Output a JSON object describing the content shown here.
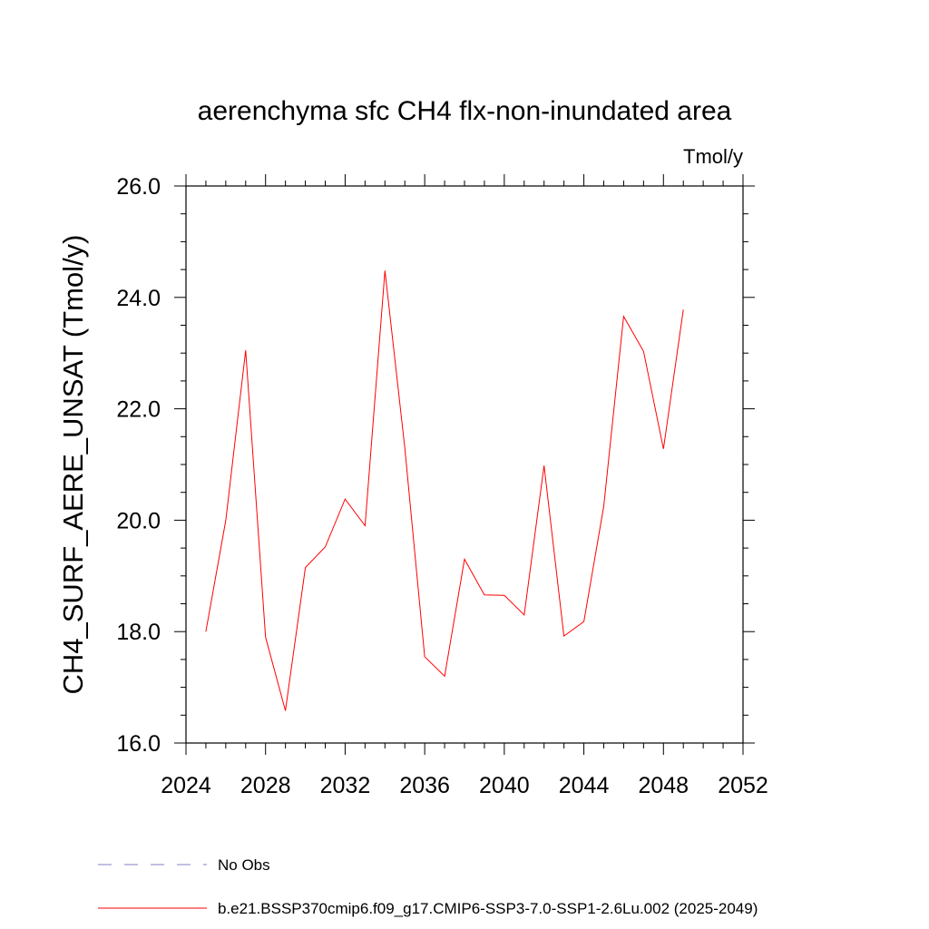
{
  "chart_data": {
    "type": "line",
    "title": "aerenchyma sfc CH4 flx-non-inundated area",
    "units_label": "Tmol/y",
    "ylabel": "CH4_SURF_AERE_UNSAT  (Tmol/y)",
    "xlabel": "",
    "xlim": [
      2024,
      2052
    ],
    "ylim": [
      16.0,
      26.0
    ],
    "x_ticks": [
      "2024",
      "2028",
      "2032",
      "2036",
      "2040",
      "2044",
      "2048",
      "2052"
    ],
    "y_ticks": [
      "16.0",
      "18.0",
      "20.0",
      "22.0",
      "24.0",
      "26.0"
    ],
    "grid": false,
    "x": [
      2025,
      2026,
      2027,
      2028,
      2029,
      2030,
      2031,
      2032,
      2033,
      2034,
      2035,
      2036,
      2037,
      2038,
      2039,
      2040,
      2041,
      2042,
      2043,
      2044,
      2045,
      2046,
      2047,
      2048,
      2049
    ],
    "series": [
      {
        "name": "b.e21.BSSP370cmip6.f09_g17.CMIP6-SSP3-7.0-SSP1-2.6Lu.002 (2025-2049)",
        "color": "#ff0000",
        "values": [
          18.0,
          20.0,
          23.05,
          17.9,
          16.58,
          19.15,
          19.52,
          20.38,
          19.9,
          24.48,
          21.3,
          17.55,
          17.2,
          19.3,
          18.66,
          18.65,
          18.3,
          20.98,
          17.92,
          18.18,
          20.25,
          23.66,
          23.03,
          21.28,
          23.78
        ]
      }
    ],
    "legend": {
      "placement": "bottom-left",
      "entries": [
        {
          "label": "No Obs",
          "style": "dashed",
          "color": "#8080c0"
        },
        {
          "label": "b.e21.BSSP370cmip6.f09_g17.CMIP6-SSP3-7.0-SSP1-2.6Lu.002 (2025-2049)",
          "style": "solid",
          "color": "#ff0000"
        }
      ]
    }
  }
}
